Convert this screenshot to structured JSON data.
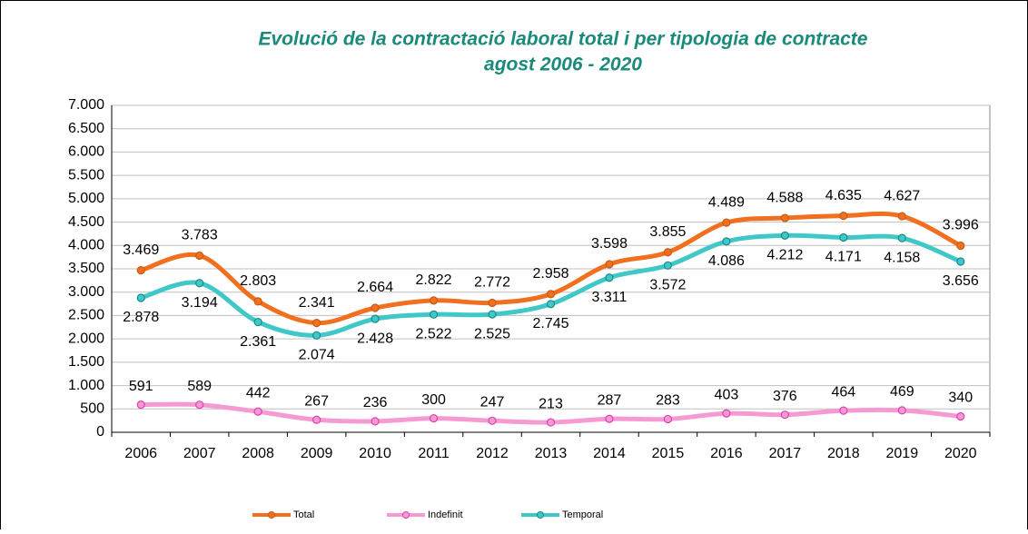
{
  "chart_data": {
    "type": "line",
    "title": "Evolució de la contractació laboral total i per tipologia de contracte",
    "subtitle": "agost 2006 - 2020",
    "categories": [
      "2006",
      "2007",
      "2008",
      "2009",
      "2010",
      "2011",
      "2012",
      "2013",
      "2014",
      "2015",
      "2016",
      "2017",
      "2018",
      "2019",
      "2020"
    ],
    "series": [
      {
        "name": "Total",
        "color": "#f07020",
        "marker": "#c85a14",
        "values": [
          3469,
          3783,
          2803,
          2341,
          2664,
          2822,
          2772,
          2958,
          3598,
          3855,
          4489,
          4588,
          4635,
          4627,
          3996
        ],
        "value_labels": [
          "3.469",
          "3.783",
          "2.803",
          "2.341",
          "2.664",
          "2.822",
          "2.772",
          "2.958",
          "3.598",
          "3.855",
          "4.489",
          "4.588",
          "4.635",
          "4.627",
          "3.996"
        ]
      },
      {
        "name": "Indefinit",
        "color": "#f59ad2",
        "marker": "#e040b0",
        "values": [
          591,
          589,
          442,
          267,
          236,
          300,
          247,
          213,
          287,
          283,
          403,
          376,
          464,
          469,
          340
        ]
      },
      {
        "name": "Temporal",
        "color": "#40c8c8",
        "marker": "#1a8a8a",
        "values": [
          2878,
          3194,
          2361,
          2074,
          2428,
          2522,
          2525,
          2745,
          3311,
          3572,
          4086,
          4212,
          4171,
          4158,
          3656
        ],
        "value_labels": [
          "2.878",
          "3.194",
          "2.361",
          "2.074",
          "2.428",
          "2.522",
          "2.525",
          "2.745",
          "3.311",
          "3.572",
          "4.086",
          "4.212",
          "4.171",
          "4.158",
          "3.656"
        ]
      }
    ],
    "ylim": [
      0,
      7000
    ],
    "yticks": [
      0,
      500,
      {
        "value": 1000,
        "label": "1.000"
      },
      {
        "value": 1500,
        "label": "1.500"
      },
      {
        "value": 2000,
        "label": "2.000"
      },
      {
        "value": 2500,
        "label": "2.500"
      },
      {
        "value": 3000,
        "label": "3.000"
      },
      {
        "value": 3500,
        "label": "3.500"
      },
      {
        "value": 4000,
        "label": "4.000"
      },
      {
        "value": 4500,
        "label": "4.500"
      },
      {
        "value": 5000,
        "label": "5.000"
      },
      {
        "value": 5500,
        "label": "5.500"
      },
      {
        "value": 6000,
        "label": "6.000"
      },
      {
        "value": 6500,
        "label": "6.500"
      },
      {
        "value": 7000,
        "label": "7.000"
      }
    ],
    "grid": true,
    "legend": "bottom",
    "title_color": "#1a8a7a"
  }
}
